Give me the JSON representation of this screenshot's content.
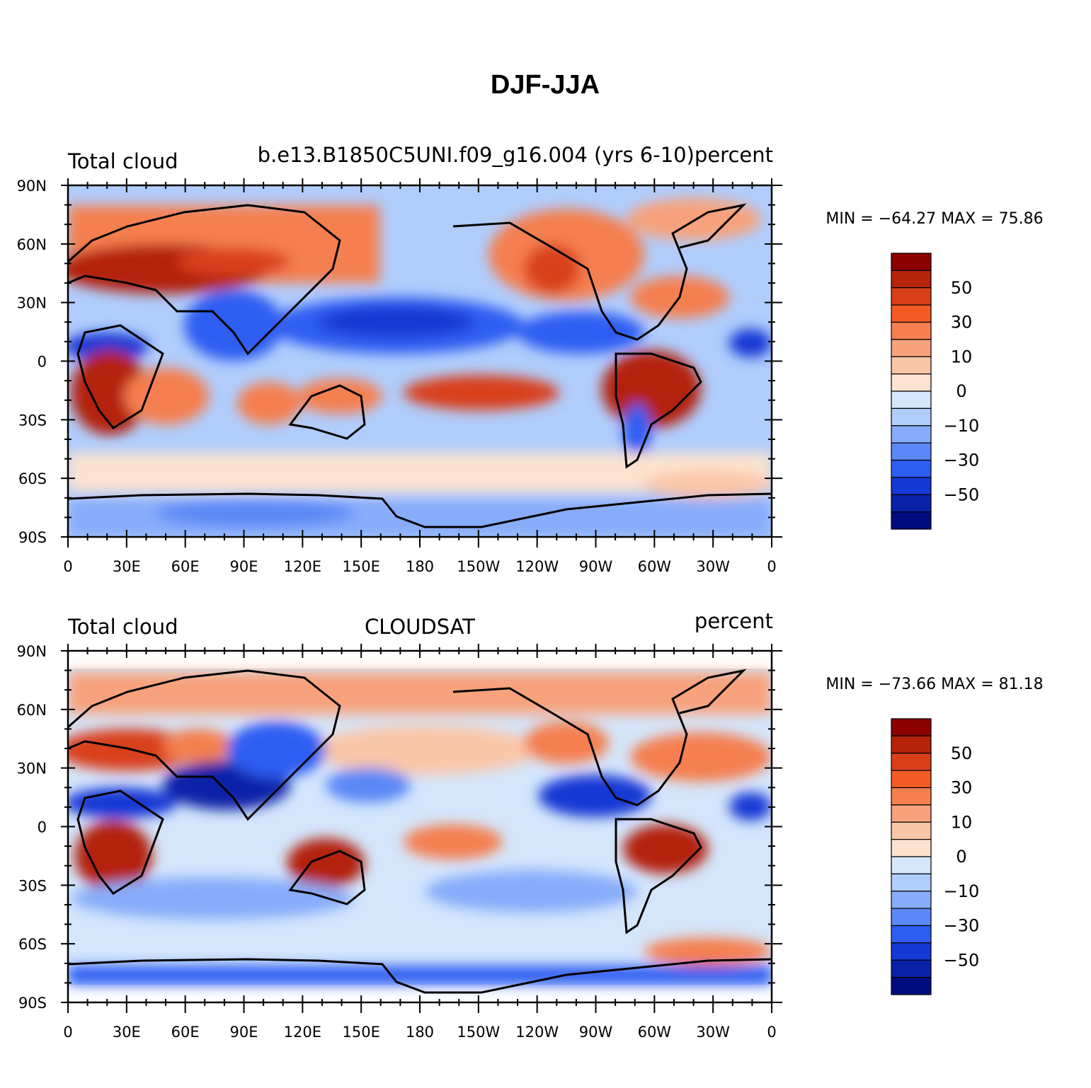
{
  "figure": {
    "title": "DJF-JJA"
  },
  "panels": [
    {
      "variable_label": "Total cloud",
      "source_label": "b.e13.B1850C5UNI.f09_g16.004 (yrs 6-10)",
      "units_label": "percent",
      "stats_text": "MIN = −64.27  MAX =   75.86"
    },
    {
      "variable_label": "Total cloud",
      "source_label": "CLOUDSAT",
      "units_label": "percent",
      "stats_text": "MIN = −73.66  MAX =   81.18"
    }
  ],
  "axes": {
    "lat_ticks": [
      "90N",
      "60N",
      "30N",
      "0",
      "30S",
      "60S",
      "90S"
    ],
    "lon_ticks": [
      "0",
      "30E",
      "60E",
      "90E",
      "120E",
      "150E",
      "180",
      "150W",
      "120W",
      "90W",
      "60W",
      "30W",
      "0"
    ]
  },
  "colorbar": {
    "labels": [
      "50",
      "30",
      "10",
      "0",
      "−10",
      "−30",
      "−50"
    ],
    "colors": [
      "#8c0000",
      "#b3240a",
      "#d9401a",
      "#f25c24",
      "#f57f4f",
      "#f7a27c",
      "#fac6a8",
      "#fde3cf",
      "#d4e6fc",
      "#b0cdfc",
      "#87acfa",
      "#5a88f7",
      "#2f5df2",
      "#1439d4",
      "#0a22a8",
      "#000c80"
    ]
  },
  "palette": {
    "land_outline": "#000000",
    "background": "#ffffff"
  }
}
